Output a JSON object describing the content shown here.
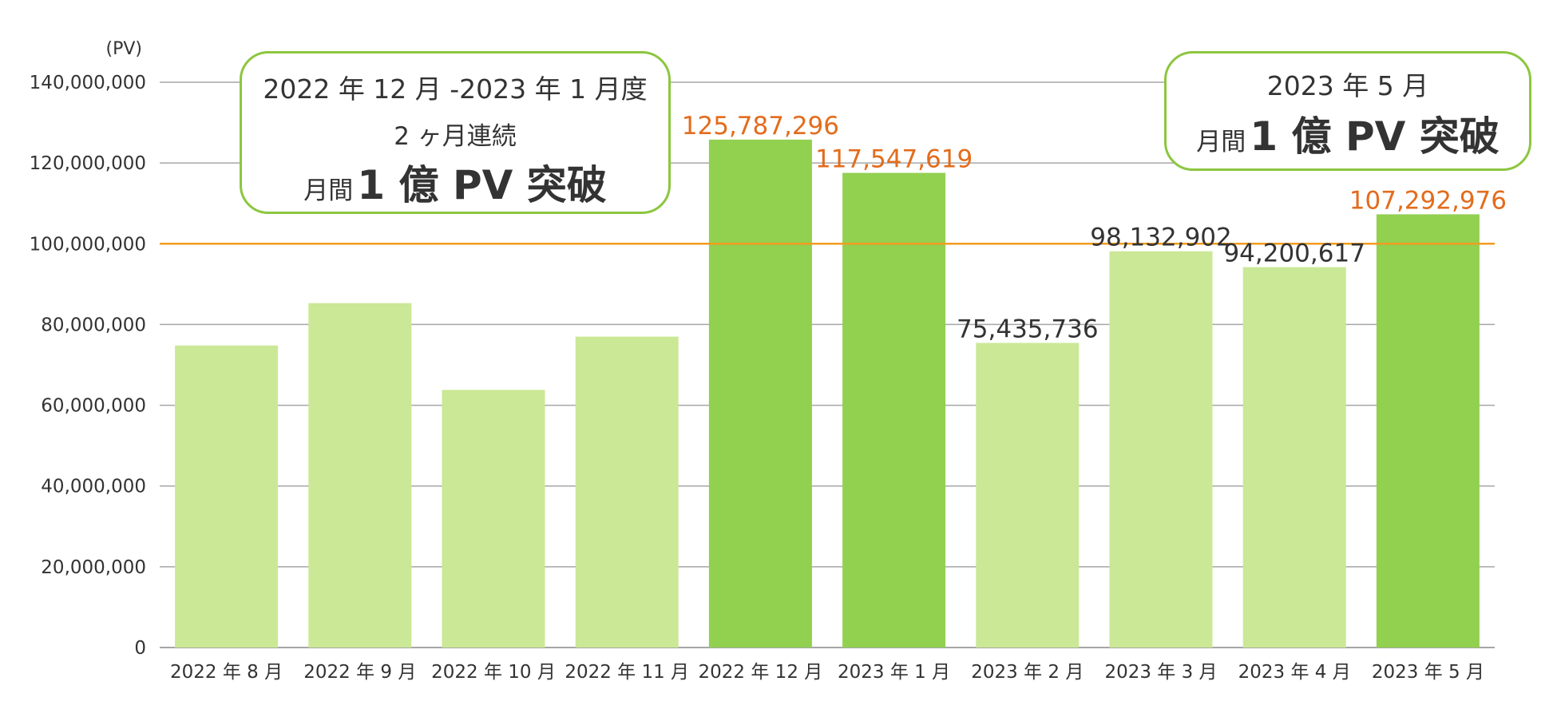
{
  "chart_data": {
    "type": "bar",
    "ylabel": "(PV)",
    "ylim": [
      0,
      140000000
    ],
    "ytick_step": 20000000,
    "ytick_labels": [
      "0",
      "20,000,000",
      "40,000,000",
      "60,000,000",
      "80,000,000",
      "100,000,000",
      "120,000,000",
      "140,000,000"
    ],
    "categories": [
      "2022 年 8 月",
      "2022 年 9 月",
      "2022 年 10 月",
      "2022 年 11 月",
      "2022 年 12 月",
      "2023 年 1 月",
      "2023 年 2 月",
      "2023 年 3 月",
      "2023 年 4 月",
      "2023 年 5 月"
    ],
    "values": [
      74800000,
      85300000,
      63800000,
      77000000,
      125787296,
      117547619,
      75435736,
      98132902,
      94200617,
      107292976
    ],
    "highlighted": [
      false,
      false,
      false,
      false,
      true,
      true,
      false,
      false,
      false,
      true
    ],
    "data_labels": [
      "",
      "",
      "",
      "",
      "125,787,296",
      "117,547,619",
      "75,435,736",
      "98,132,902",
      "94,200,617",
      "107,292,976"
    ],
    "reference_line": {
      "value": 100000000,
      "label": "100,000,000",
      "color": "#f29c1f"
    },
    "grid": true,
    "colors": {
      "bar_normal": "#cbe896",
      "bar_highlight": "#92d050",
      "label_highlight": "#e36c1c",
      "label_normal": "#333333",
      "gridline": "#a6a6a6",
      "callout_border": "#8cc63f"
    }
  },
  "callouts": [
    {
      "line1": "2022 年 12 月 -2023 年 1 月度",
      "line2": "2 ヶ月連続",
      "line3_small": "月間",
      "line3_big": "1 億 PV 突破"
    },
    {
      "line1": "2023 年 5 月",
      "line3_small": "月間",
      "line3_big": "1 億 PV 突破"
    }
  ]
}
